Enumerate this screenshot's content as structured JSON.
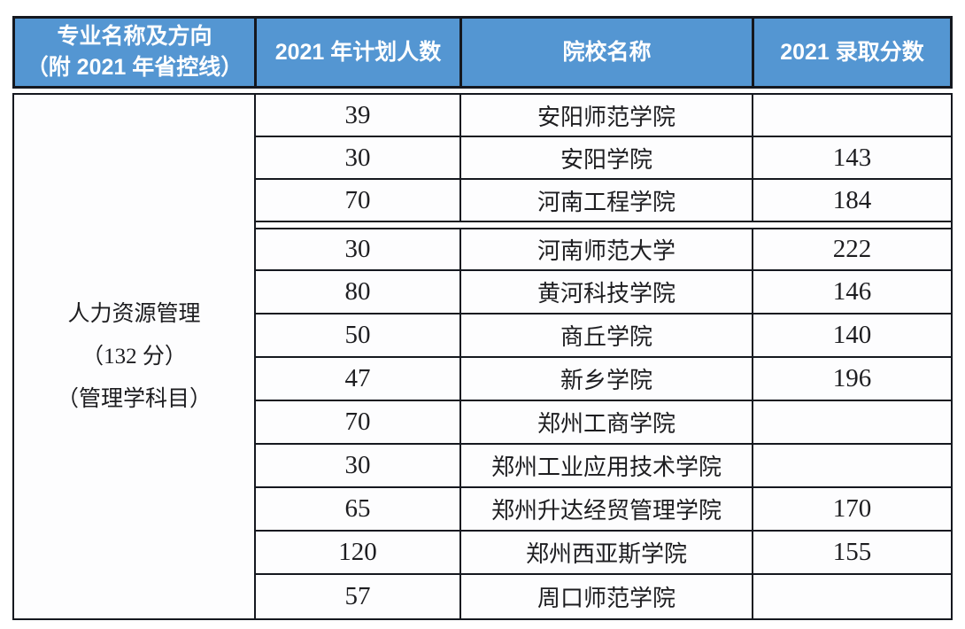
{
  "header": {
    "major": "专业名称及方向\n（附 2021 年省控线）",
    "plan": "2021 年计划人数",
    "school": "院校名称",
    "score": "2021 录取分数"
  },
  "major": {
    "line1": "人力资源管理",
    "line2": "（132 分）",
    "line3": "（管理学科目）"
  },
  "rows": [
    {
      "plan": "39",
      "school": "安阳师范学院",
      "score": ""
    },
    {
      "plan": "30",
      "school": "安阳学院",
      "score": "143"
    },
    {
      "plan": "70",
      "school": "河南工程学院",
      "score": "184"
    },
    {
      "plan": "30",
      "school": "河南师范大学",
      "score": "222"
    },
    {
      "plan": "80",
      "school": "黄河科技学院",
      "score": "146"
    },
    {
      "plan": "50",
      "school": "商丘学院",
      "score": "140"
    },
    {
      "plan": "47",
      "school": "新乡学院",
      "score": "196"
    },
    {
      "plan": "70",
      "school": "郑州工商学院",
      "score": ""
    },
    {
      "plan": "30",
      "school": "郑州工业应用技术学院",
      "score": ""
    },
    {
      "plan": "65",
      "school": "郑州升达经贸管理学院",
      "score": "170"
    },
    {
      "plan": "120",
      "school": "郑州西亚斯学院",
      "score": "155"
    },
    {
      "plan": "57",
      "school": "周口师范学院",
      "score": ""
    }
  ],
  "colors": {
    "header_bg": "#5496d2",
    "header_text": "#ffffff",
    "border": "#15181f",
    "body_bg": "#fdfdfe",
    "body_text": "#1d1d20"
  }
}
